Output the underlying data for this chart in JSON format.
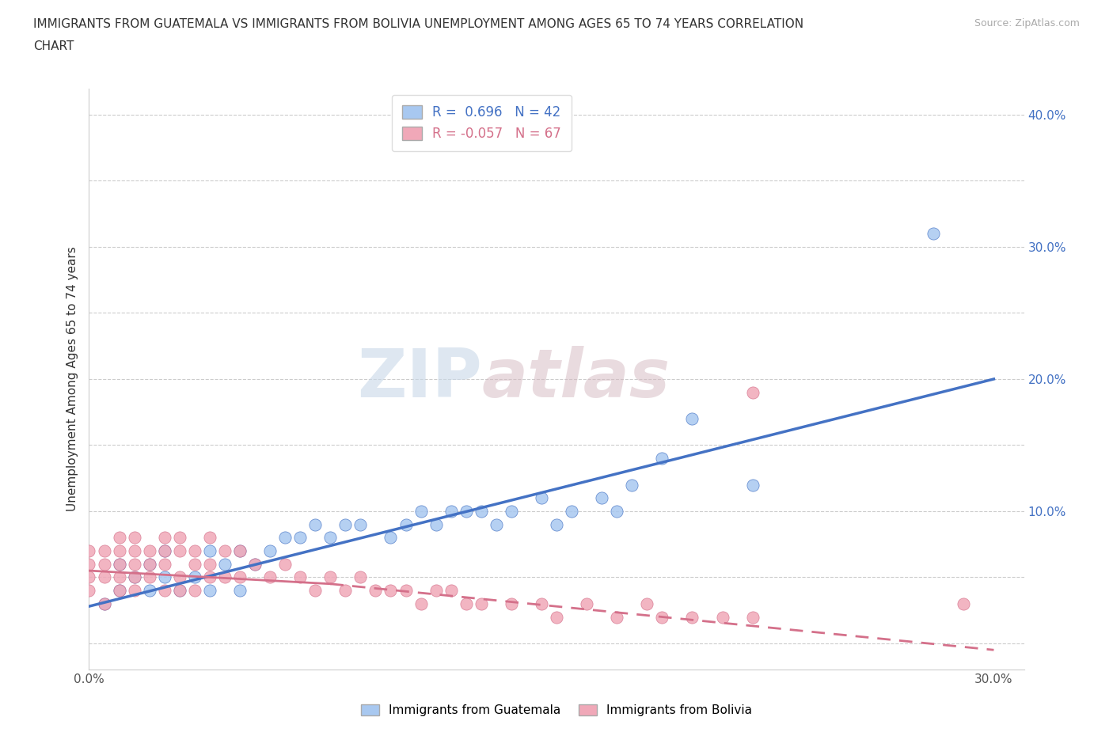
{
  "title_line1": "IMMIGRANTS FROM GUATEMALA VS IMMIGRANTS FROM BOLIVIA UNEMPLOYMENT AMONG AGES 65 TO 74 YEARS CORRELATION",
  "title_line2": "CHART",
  "source": "Source: ZipAtlas.com",
  "ylabel": "Unemployment Among Ages 65 to 74 years",
  "xlim": [
    0.0,
    0.31
  ],
  "ylim": [
    -0.02,
    0.42
  ],
  "x_ticks": [
    0.0,
    0.05,
    0.1,
    0.15,
    0.2,
    0.25,
    0.3
  ],
  "x_tick_labels": [
    "0.0%",
    "",
    "",
    "",
    "",
    "",
    "30.0%"
  ],
  "y_ticks": [
    0.0,
    0.05,
    0.1,
    0.15,
    0.2,
    0.25,
    0.3,
    0.35,
    0.4
  ],
  "y_tick_labels": [
    "",
    "",
    "10.0%",
    "",
    "20.0%",
    "",
    "30.0%",
    "",
    "40.0%"
  ],
  "guatemala_color": "#a8c8f0",
  "bolivia_color": "#f0a8b8",
  "guatemala_line_color": "#4472c4",
  "bolivia_line_color": "#d4708a",
  "R_guatemala": 0.696,
  "N_guatemala": 42,
  "R_bolivia": -0.057,
  "N_bolivia": 67,
  "watermark_zip": "ZIP",
  "watermark_atlas": "atlas",
  "legend_label_guatemala": "Immigrants from Guatemala",
  "legend_label_bolivia": "Immigrants from Bolivia",
  "guatemala_x": [
    0.005,
    0.01,
    0.01,
    0.015,
    0.02,
    0.02,
    0.025,
    0.025,
    0.03,
    0.035,
    0.04,
    0.04,
    0.045,
    0.05,
    0.05,
    0.055,
    0.06,
    0.065,
    0.07,
    0.075,
    0.08,
    0.085,
    0.09,
    0.1,
    0.105,
    0.11,
    0.115,
    0.12,
    0.125,
    0.13,
    0.135,
    0.14,
    0.15,
    0.155,
    0.16,
    0.17,
    0.175,
    0.18,
    0.19,
    0.2,
    0.22,
    0.28
  ],
  "guatemala_y": [
    0.03,
    0.04,
    0.06,
    0.05,
    0.04,
    0.06,
    0.05,
    0.07,
    0.04,
    0.05,
    0.04,
    0.07,
    0.06,
    0.04,
    0.07,
    0.06,
    0.07,
    0.08,
    0.08,
    0.09,
    0.08,
    0.09,
    0.09,
    0.08,
    0.09,
    0.1,
    0.09,
    0.1,
    0.1,
    0.1,
    0.09,
    0.1,
    0.11,
    0.09,
    0.1,
    0.11,
    0.1,
    0.12,
    0.14,
    0.17,
    0.12,
    0.31
  ],
  "bolivia_x": [
    0.0,
    0.0,
    0.0,
    0.0,
    0.005,
    0.005,
    0.005,
    0.005,
    0.01,
    0.01,
    0.01,
    0.01,
    0.01,
    0.015,
    0.015,
    0.015,
    0.015,
    0.015,
    0.02,
    0.02,
    0.02,
    0.025,
    0.025,
    0.025,
    0.025,
    0.03,
    0.03,
    0.03,
    0.03,
    0.035,
    0.035,
    0.035,
    0.04,
    0.04,
    0.04,
    0.045,
    0.045,
    0.05,
    0.05,
    0.055,
    0.06,
    0.065,
    0.07,
    0.075,
    0.08,
    0.085,
    0.09,
    0.095,
    0.1,
    0.105,
    0.11,
    0.115,
    0.12,
    0.125,
    0.13,
    0.14,
    0.15,
    0.155,
    0.165,
    0.175,
    0.185,
    0.19,
    0.2,
    0.21,
    0.22,
    0.22,
    0.29
  ],
  "bolivia_y": [
    0.04,
    0.05,
    0.06,
    0.07,
    0.03,
    0.05,
    0.06,
    0.07,
    0.04,
    0.05,
    0.06,
    0.07,
    0.08,
    0.04,
    0.05,
    0.06,
    0.07,
    0.08,
    0.05,
    0.06,
    0.07,
    0.04,
    0.06,
    0.07,
    0.08,
    0.04,
    0.05,
    0.07,
    0.08,
    0.04,
    0.06,
    0.07,
    0.05,
    0.06,
    0.08,
    0.05,
    0.07,
    0.05,
    0.07,
    0.06,
    0.05,
    0.06,
    0.05,
    0.04,
    0.05,
    0.04,
    0.05,
    0.04,
    0.04,
    0.04,
    0.03,
    0.04,
    0.04,
    0.03,
    0.03,
    0.03,
    0.03,
    0.02,
    0.03,
    0.02,
    0.03,
    0.02,
    0.02,
    0.02,
    0.02,
    0.19,
    0.03
  ]
}
